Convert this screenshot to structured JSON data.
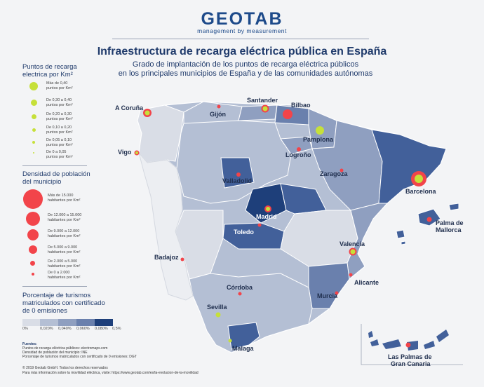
{
  "header": {
    "logo": "GEOTAB",
    "logo_tagline": "management by measurement",
    "title": "Infraestructura de recarga eléctrica pública en España",
    "subtitle_line1": "Grado de implantación de los puntos de recarga eléctrica públicos",
    "subtitle_line2": "en los principales municipios de España y de las comunidades autónomas"
  },
  "legend_charging": {
    "title_line1": "Puntos de recarga",
    "title_line2": "electrica por Km²",
    "items": [
      {
        "l1": "Más de 0,40",
        "l2": "puntos por Km²"
      },
      {
        "l1": "De 0,30 a 0,40",
        "l2": "puntos por Km²"
      },
      {
        "l1": "De 0,20 a 0,30",
        "l2": "puntos por Km²"
      },
      {
        "l1": "De 0,10 a 0,20",
        "l2": "puntos por Km²"
      },
      {
        "l1": "De 0,05 a 0,10",
        "l2": "puntos por Km²"
      },
      {
        "l1": "De 0 a 0,05",
        "l2": "puntos por Km²"
      }
    ],
    "color": "#c6e03a"
  },
  "legend_density": {
    "title_line1": "Densidad de población",
    "title_line2": "del municipio",
    "items": [
      {
        "l1": "Más de 15.000",
        "l2": "habitantes por Km²"
      },
      {
        "l1": "De 12.000 a 15.000",
        "l2": "habitantes por Km²"
      },
      {
        "l1": "De 9.000 a 12.000",
        "l2": "habitantes por Km²"
      },
      {
        "l1": "De 5.000 a 9.000",
        "l2": "habitantes por Km²"
      },
      {
        "l1": "De 2.000 a 5.000",
        "l2": "habitantes por Km²"
      },
      {
        "l1": "De 0 a 2.000",
        "l2": "habitantes por Km²"
      }
    ],
    "color": "#f2444a"
  },
  "legend_zero": {
    "title_line1": "Porcentaje de turismos",
    "title_line2": "matriculados con certificado",
    "title_line3": "de 0 emisiones",
    "labels": [
      "0%",
      "0,020%",
      "0,040%",
      "0,060%",
      "0,080%",
      "0,5%"
    ],
    "colors": [
      "#d9dde6",
      "#b4bfd4",
      "#8f9fc0",
      "#6a80ad",
      "#42609a",
      "#1e3f7a"
    ]
  },
  "sources": {
    "heading": "Fuentes:",
    "line1": "Puntos de recarga eléctrica públicos: electromaps.com",
    "line2": "Densidad de población del municipio: INE",
    "line3": "Porcentaje de turismos matriculados con certificado de 0 emisiones: DGT"
  },
  "footer": {
    "line1": "© 2019 Geotab GmbH. Todos los derechos reservados",
    "line2": "Para más información sobre la movilidad eléctrica, visite: https://www.geotab.com/es/la-evolucion-de-la-movilidad"
  },
  "cities": [
    {
      "name": "A Coruña"
    },
    {
      "name": "Santander"
    },
    {
      "name": "Bilbao"
    },
    {
      "name": "Gijón"
    },
    {
      "name": "Pamplona"
    },
    {
      "name": "Vigo"
    },
    {
      "name": "Logroño"
    },
    {
      "name": "Zaragoza"
    },
    {
      "name": "Valladolid"
    },
    {
      "name": "Barcelona"
    },
    {
      "name": "Madrid"
    },
    {
      "name": "Palma de"
    },
    {
      "name": "Mallorca"
    },
    {
      "name": "Toledo"
    },
    {
      "name": "Badajoz"
    },
    {
      "name": "Valencia"
    },
    {
      "name": "Córdoba"
    },
    {
      "name": "Alicante"
    },
    {
      "name": "Sevilla"
    },
    {
      "name": "Murcia"
    },
    {
      "name": "Malaga"
    },
    {
      "name": "Las Palmas de"
    },
    {
      "name": "Gran Canaria"
    }
  ]
}
